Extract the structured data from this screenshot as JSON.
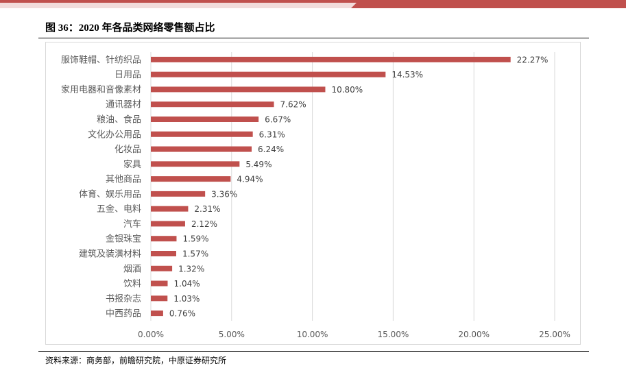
{
  "header": {
    "band_color": "#c0504d"
  },
  "figure": {
    "title": "图 36：2020 年各品类网络零售额占比",
    "source": "资料来源：商务部，前瞻研究院，中原证券研究所"
  },
  "chart_data": {
    "type": "bar",
    "orientation": "horizontal",
    "title": "",
    "xlabel": "",
    "ylabel": "",
    "categories": [
      "服饰鞋帽、针纺织品",
      "日用品",
      "家用电器和音像素材",
      "通讯器材",
      "粮油、食品",
      "文化办公用品",
      "化妆品",
      "家具",
      "其他商品",
      "体育、娱乐用品",
      "五金、电料",
      "汽车",
      "金银珠宝",
      "建筑及装潢材料",
      "烟酒",
      "饮料",
      "书报杂志",
      "中西药品"
    ],
    "values": [
      22.27,
      14.53,
      10.8,
      7.62,
      6.67,
      6.31,
      6.24,
      5.49,
      4.94,
      3.36,
      2.31,
      2.12,
      1.59,
      1.57,
      1.32,
      1.04,
      1.03,
      0.76
    ],
    "value_labels": [
      "22.27%",
      "14.53%",
      "10.80%",
      "7.62%",
      "6.67%",
      "6.31%",
      "6.24%",
      "5.49%",
      "4.94%",
      "3.36%",
      "2.31%",
      "2.12%",
      "1.59%",
      "1.57%",
      "1.32%",
      "1.04%",
      "1.03%",
      "0.76%"
    ],
    "xlim": [
      0,
      25
    ],
    "xticks": [
      0,
      5,
      10,
      15,
      20,
      25
    ],
    "xtick_labels": [
      "0.00%",
      "5.00%",
      "10.00%",
      "15.00%",
      "20.00%",
      "25.00%"
    ],
    "grid": "vertical",
    "legend": "none",
    "bar_color": "#c0504d"
  }
}
